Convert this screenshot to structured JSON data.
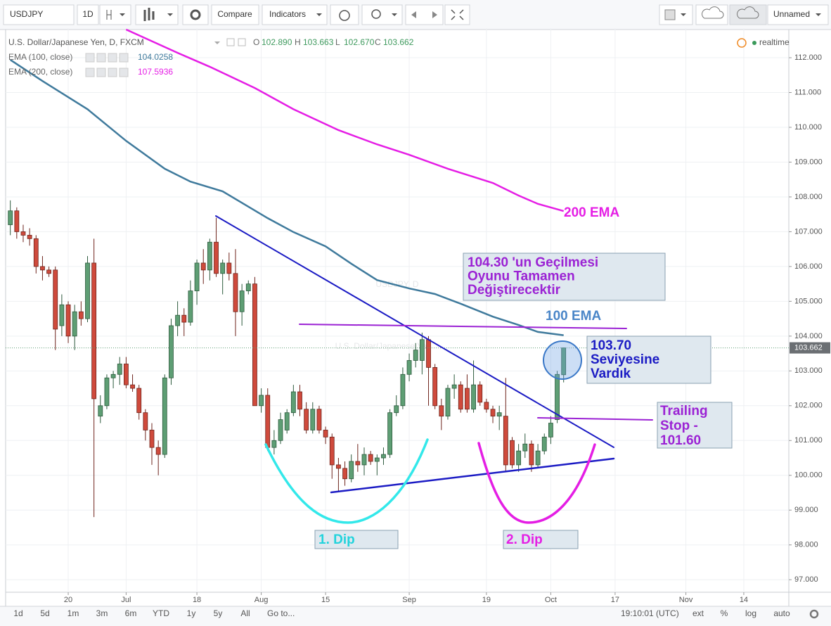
{
  "toolbar": {
    "symbol": "USDJPY",
    "interval": "1D",
    "compare": "Compare",
    "indicators": "Indicators",
    "layout": "Unnamed"
  },
  "legend": {
    "title": "U.S. Dollar/Japanese Yen, D, FXCM",
    "o": "O",
    "h": "H",
    "l": "L",
    "c": "C",
    "ohlc": [
      "102.890",
      "103.663",
      "102.670",
      "103.662"
    ],
    "realtime": "realtime"
  },
  "watermark": {
    "symbol": "USDJPY, D",
    "description": "U.S. Dollar/Japanese Yen"
  },
  "chart_data": {
    "type": "candlestick",
    "grid": true,
    "x": [
      -9,
      -8,
      -7,
      -6,
      -5,
      -4,
      -3,
      -2,
      -1,
      0,
      1,
      2,
      3,
      4,
      5,
      6,
      7,
      8,
      9,
      10,
      11,
      12,
      13,
      14,
      15,
      16,
      17,
      18,
      19,
      20,
      21,
      22,
      23,
      24,
      25,
      26,
      27,
      28,
      29,
      30,
      31,
      32,
      33,
      34,
      35,
      36,
      37,
      38,
      39,
      40,
      41,
      42,
      43,
      44,
      45,
      46,
      47,
      48,
      49,
      50,
      51,
      52,
      53,
      54,
      55,
      56,
      57,
      58,
      59,
      60,
      61,
      62,
      63,
      64,
      65,
      66,
      67,
      68,
      69,
      70,
      71,
      72,
      73,
      74,
      75,
      76,
      77
    ],
    "open": [
      107.2,
      107.6,
      107.0,
      106.9,
      106.8,
      106.0,
      105.9,
      105.9,
      104.3,
      104.9,
      104.0,
      104.7,
      104.5,
      106.1,
      101.7,
      102.0,
      102.8,
      102.9,
      103.2,
      102.6,
      102.5,
      101.8,
      101.3,
      100.8,
      100.6,
      102.8,
      104.3,
      104.6,
      104.4,
      105.3,
      106.1,
      105.9,
      106.7,
      105.8,
      106.1,
      105.8,
      104.7,
      105.3,
      105.5,
      102.0,
      102.3,
      100.8,
      101.0,
      101.3,
      101.8,
      102.4,
      101.9,
      101.3,
      101.9,
      101.3,
      101.1,
      100.3,
      100.2,
      99.9,
      100.4,
      100.3,
      100.6,
      100.4,
      100.5,
      100.6,
      101.8,
      102.0,
      102.9,
      103.3,
      103.3,
      103.9,
      103.1,
      102.0,
      101.7,
      102.5,
      102.6,
      102.5,
      101.9,
      102.6,
      102.1,
      101.9,
      101.7,
      101.7,
      101.0,
      100.3,
      100.7,
      100.9,
      100.3,
      100.7,
      101.1,
      101.6,
      102.89
    ],
    "high": [
      107.9,
      107.7,
      107.2,
      107.1,
      106.9,
      106.3,
      106.0,
      106.0,
      105.2,
      105.0,
      104.9,
      105.0,
      106.3,
      106.8,
      102.3,
      102.9,
      103.0,
      103.4,
      103.4,
      102.9,
      102.6,
      101.9,
      101.5,
      101.0,
      102.9,
      104.5,
      105.0,
      104.8,
      105.6,
      106.2,
      106.5,
      106.8,
      107.4,
      106.2,
      106.4,
      106.5,
      105.5,
      105.6,
      105.7,
      102.5,
      102.5,
      101.3,
      101.8,
      101.9,
      102.6,
      102.6,
      102.1,
      102.1,
      102.0,
      101.4,
      101.2,
      100.5,
      100.4,
      100.6,
      100.9,
      100.8,
      100.7,
      100.6,
      100.8,
      101.9,
      102.3,
      103.1,
      103.5,
      103.8,
      104.1,
      104.0,
      103.2,
      102.2,
      102.6,
      102.9,
      102.7,
      102.9,
      103.3,
      102.7,
      102.2,
      102.0,
      102.0,
      102.8,
      101.1,
      100.9,
      101.2,
      101.0,
      100.9,
      101.2,
      101.7,
      103.0,
      103.663
    ],
    "low": [
      106.9,
      106.8,
      106.7,
      106.6,
      105.8,
      105.6,
      105.7,
      103.6,
      104.0,
      103.8,
      103.6,
      104.3,
      104.4,
      98.8,
      101.5,
      101.9,
      102.5,
      102.6,
      102.5,
      102.4,
      101.6,
      101.0,
      100.3,
      100.0,
      100.5,
      102.6,
      104.0,
      104.0,
      104.3,
      104.9,
      105.5,
      105.6,
      105.7,
      105.2,
      105.6,
      104.0,
      104.3,
      105.2,
      102.0,
      101.8,
      100.7,
      100.6,
      100.9,
      101.2,
      101.7,
      101.7,
      101.2,
      101.2,
      101.2,
      100.9,
      99.9,
      99.55,
      99.7,
      99.8,
      100.1,
      100.0,
      100.3,
      100.0,
      100.3,
      100.5,
      101.7,
      101.9,
      102.7,
      103.1,
      102.9,
      102.0,
      101.9,
      101.3,
      101.6,
      102.2,
      101.8,
      101.8,
      101.8,
      102.0,
      101.8,
      101.5,
      101.3,
      100.1,
      100.2,
      100.1,
      100.5,
      100.1,
      100.2,
      100.6,
      100.9,
      101.5,
      102.67
    ],
    "close": [
      107.6,
      107.0,
      106.9,
      106.8,
      106.0,
      105.9,
      105.8,
      104.2,
      104.9,
      104.0,
      104.7,
      104.5,
      106.1,
      102.2,
      102.0,
      102.8,
      102.9,
      103.2,
      102.6,
      102.5,
      101.8,
      101.3,
      100.8,
      100.6,
      102.8,
      104.3,
      104.6,
      104.4,
      105.3,
      106.1,
      105.9,
      106.7,
      105.8,
      106.1,
      105.8,
      104.7,
      105.3,
      105.5,
      102.0,
      102.3,
      100.8,
      101.0,
      101.6,
      101.8,
      102.4,
      101.9,
      101.3,
      101.9,
      101.3,
      101.1,
      100.3,
      100.2,
      99.9,
      100.4,
      100.3,
      100.6,
      100.4,
      100.5,
      100.6,
      101.8,
      102.0,
      102.9,
      103.3,
      103.6,
      103.9,
      103.1,
      102.0,
      101.7,
      102.5,
      102.6,
      101.9,
      101.9,
      102.6,
      102.1,
      101.9,
      101.7,
      101.8,
      100.3,
      100.3,
      100.7,
      100.9,
      100.3,
      100.7,
      101.1,
      101.5,
      102.9,
      103.662
    ],
    "up_color": "#5e9e74",
    "down_color": "#cf4a3c",
    "series": [
      {
        "name": "EMA (100, close)",
        "color": "#3f7a9c",
        "x": [
          -9,
          -4,
          3,
          9,
          15,
          19,
          24,
          31,
          35,
          40,
          44,
          48,
          53,
          57,
          61,
          66,
          70,
          73,
          77
        ],
        "values": [
          111.94,
          111.33,
          110.52,
          109.61,
          108.81,
          108.44,
          108.16,
          107.39,
          106.99,
          106.58,
          106.08,
          105.61,
          105.37,
          105.21,
          104.93,
          104.56,
          104.32,
          104.12,
          104.0258
        ]
      },
      {
        "name": "EMA (200, close)",
        "color": "#e51ee5",
        "x": [
          9,
          17,
          22,
          29,
          35,
          42,
          48,
          53,
          59,
          66,
          70,
          73,
          77
        ],
        "values": [
          112.81,
          112.14,
          111.74,
          111.13,
          110.52,
          109.92,
          109.51,
          109.21,
          108.81,
          108.4,
          108.04,
          107.8,
          107.5936
        ]
      }
    ],
    "last_price_label": "103.662",
    "xlim": [
      -9.73,
      112
    ],
    "ylim": [
      96.64,
      112.85
    ],
    "xticks": [
      {
        "value": 0,
        "label": "20"
      },
      {
        "value": 9,
        "label": "Jul"
      },
      {
        "value": 20,
        "label": "18"
      },
      {
        "value": 30,
        "label": "Aug"
      },
      {
        "value": 40,
        "label": "15"
      },
      {
        "value": 53,
        "label": "Sep"
      },
      {
        "value": 65,
        "label": "19"
      },
      {
        "value": 75,
        "label": "Oct"
      },
      {
        "value": 85,
        "label": "17"
      },
      {
        "value": 96,
        "label": "Nov"
      },
      {
        "value": 105,
        "label": "14"
      }
    ],
    "yticks": [
      {
        "value": 97,
        "label": "97.000"
      },
      {
        "value": 98,
        "label": "98.000"
      },
      {
        "value": 99,
        "label": "99.000"
      },
      {
        "value": 100,
        "label": "100.000"
      },
      {
        "value": 101,
        "label": "101.000"
      },
      {
        "value": 102,
        "label": "102.000"
      },
      {
        "value": 103,
        "label": "103.000"
      },
      {
        "value": 104,
        "label": "104.000"
      },
      {
        "value": 105,
        "label": "105.000"
      },
      {
        "value": 106,
        "label": "106.000"
      },
      {
        "value": 107,
        "label": "107.000"
      },
      {
        "value": 108,
        "label": "108.000"
      },
      {
        "value": 109,
        "label": "109.000"
      },
      {
        "value": 110,
        "label": "110.000"
      },
      {
        "value": 111,
        "label": "111.000"
      },
      {
        "value": 112,
        "label": "112.000"
      }
    ]
  },
  "annotations": {
    "ema200": "200 EMA",
    "ema100": "100 EMA",
    "breakout": [
      "104.30 'un Geçilmesi",
      "Oyunu Tamamen",
      "Değiştirecektir"
    ],
    "reached": [
      "103.70",
      "Seviyesine",
      "Vardık"
    ],
    "stop": [
      "Trailing",
      "Stop -",
      "101.60"
    ],
    "dip1": "1. Dip",
    "dip2": "2. Dip"
  },
  "bottom_bar": {
    "ranges": [
      "1d",
      "5d",
      "1m",
      "3m",
      "6m",
      "YTD",
      "1y",
      "5y",
      "All"
    ],
    "goto": "Go to...",
    "clock": "19:10:01 (UTC)",
    "options": [
      "ext",
      "%",
      "log",
      "auto"
    ]
  }
}
